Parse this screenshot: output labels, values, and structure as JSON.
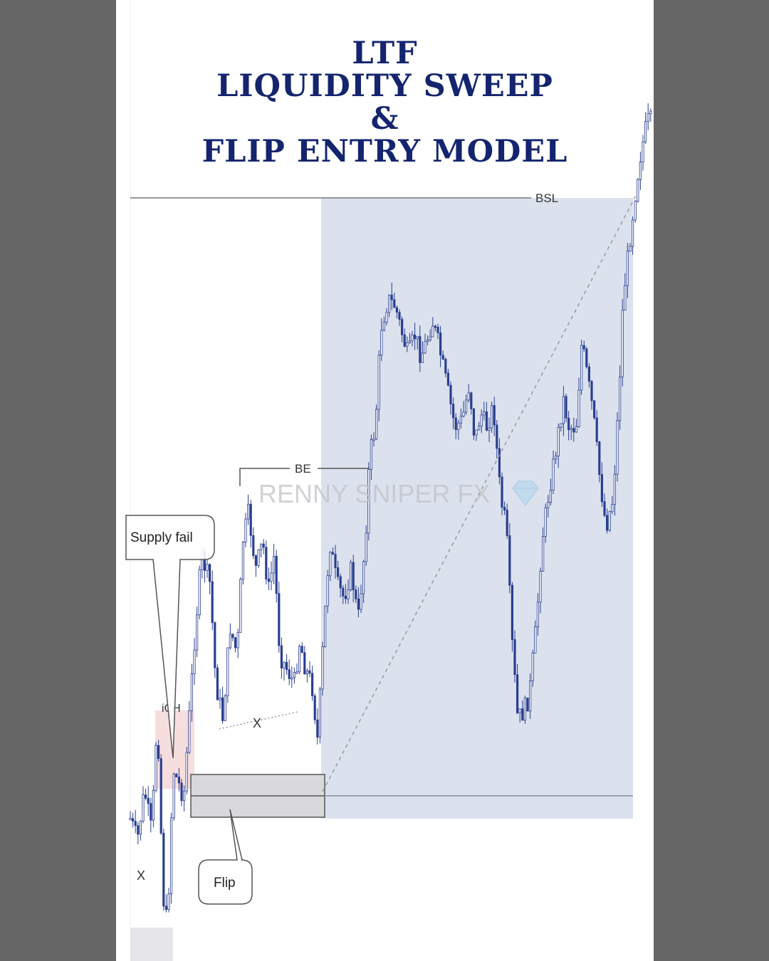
{
  "title": {
    "line1": "LTF",
    "line2": "LIQUIDITY SWEEP",
    "line3": "&",
    "line4": "FLIP ENTRY MODEL"
  },
  "watermark": "RENNY SNIPER FX",
  "colors": {
    "background": "#666666",
    "panel": "#ffffff",
    "title": "#14246e",
    "candle": "#2b3f8f",
    "target_zone": "#dbe2ee",
    "flip_zone": "#d9d9dc",
    "supply_zone": "#f7dede"
  },
  "chart_data": {
    "type": "candlestick",
    "levels": [
      {
        "label": "BSL"
      },
      {
        "label": "BE"
      },
      {
        "label": "iCH"
      }
    ],
    "annotations": [
      {
        "label": "Supply fail"
      },
      {
        "label": "Flip"
      },
      {
        "label": "X"
      },
      {
        "label": "X"
      }
    ]
  }
}
